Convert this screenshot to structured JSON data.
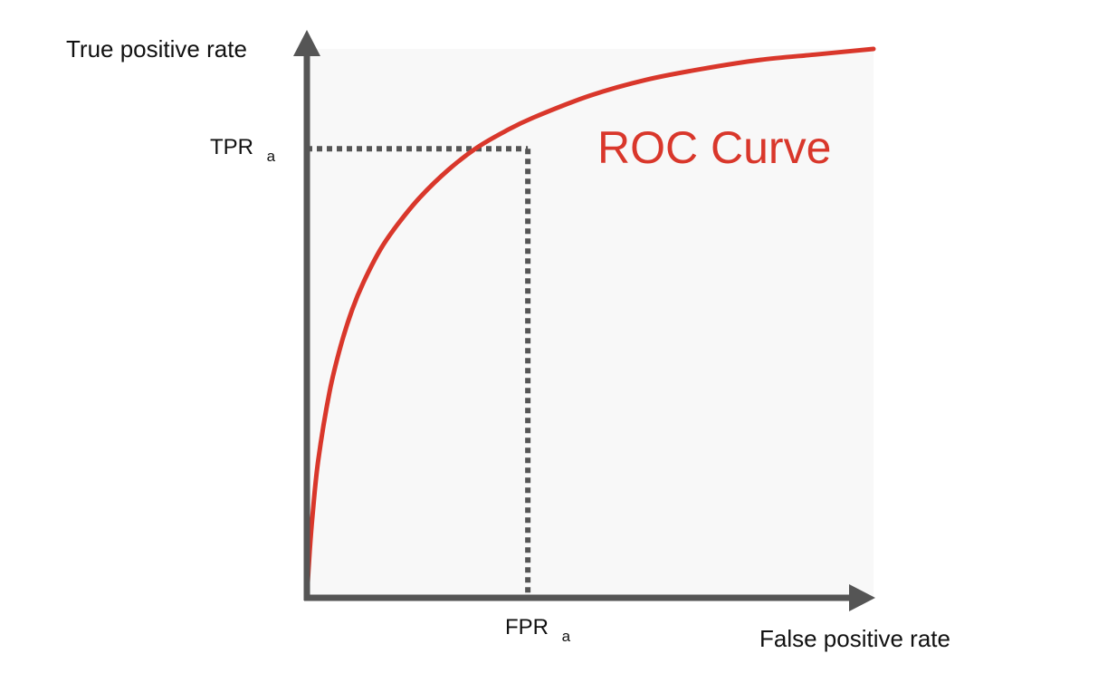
{
  "chart_data": {
    "type": "line",
    "title": "",
    "xlabel": "False positive rate",
    "ylabel": "True positive rate",
    "xlim": [
      0,
      1
    ],
    "ylim": [
      0,
      1
    ],
    "grid": false,
    "background_color": "#f8f8f8",
    "axis_color": "#555555",
    "series": [
      {
        "name": "ROC Curve",
        "color": "#d9372b",
        "x": [
          0,
          0.005,
          0.01,
          0.02,
          0.04,
          0.06,
          0.08,
          0.1,
          0.13,
          0.16,
          0.2,
          0.25,
          0.3,
          0.35,
          0.4,
          0.5,
          0.6,
          0.7,
          0.8,
          0.9,
          1.0
        ],
        "y": [
          0,
          0.085,
          0.15,
          0.25,
          0.375,
          0.46,
          0.525,
          0.575,
          0.635,
          0.68,
          0.73,
          0.78,
          0.82,
          0.85,
          0.875,
          0.915,
          0.944,
          0.964,
          0.98,
          0.99,
          1.0
        ]
      }
    ],
    "reference_point": {
      "x": 0.39,
      "y": 0.818,
      "x_label": "FPR",
      "x_label_sub": "a",
      "y_label": "TPR",
      "y_label_sub": "a",
      "line_color": "#555555"
    }
  }
}
